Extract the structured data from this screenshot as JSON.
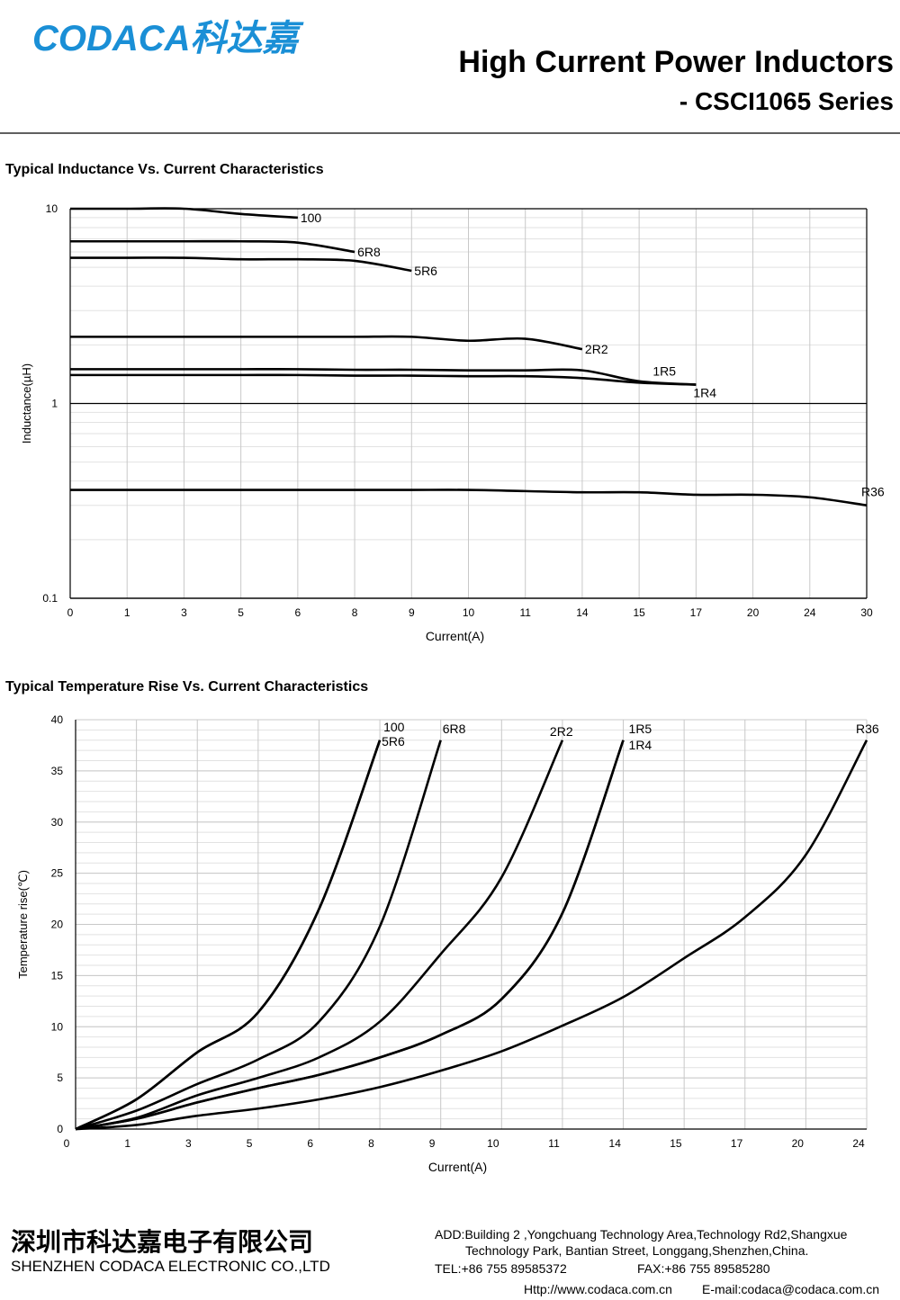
{
  "header": {
    "logo": "CODACA科达嘉",
    "title": "High Current Power Inductors",
    "subtitle": "- CSCI1065 Series"
  },
  "chart_data": [
    {
      "type": "line",
      "title": "Typical Inductance Vs. Current Characteristics",
      "y_label": "Inductance(µH)",
      "x_label": "Current(A)",
      "log_scale": true,
      "grid": true,
      "categories": [
        "0",
        "1",
        "3",
        "5",
        "6",
        "8",
        "9",
        "10",
        "11",
        "14",
        "15",
        "17",
        "20",
        "24",
        "30"
      ],
      "ylim": [
        0.1,
        10
      ],
      "yticks": [
        0.1,
        1,
        10
      ],
      "yminorticks": [
        0.2,
        0.3,
        0.4,
        0.5,
        0.6,
        0.7,
        0.8,
        0.9,
        2,
        3,
        4,
        5,
        6,
        7,
        8,
        9
      ],
      "series": [
        {
          "name": "100",
          "color": "#000000",
          "values": [
            10,
            10,
            10,
            9.4,
            9.0,
            null,
            null,
            null,
            null,
            null,
            null,
            null,
            null,
            null,
            null
          ]
        },
        {
          "name": "6R8",
          "color": "#000000",
          "values": [
            6.8,
            6.8,
            6.8,
            6.8,
            6.7,
            6.0,
            null,
            null,
            null,
            null,
            null,
            null,
            null,
            null,
            null
          ]
        },
        {
          "name": "5R6",
          "color": "#000000",
          "values": [
            5.6,
            5.6,
            5.6,
            5.5,
            5.5,
            5.4,
            4.8,
            null,
            null,
            null,
            null,
            null,
            null,
            null,
            null
          ]
        },
        {
          "name": "2R2",
          "color": "#000000",
          "values": [
            2.2,
            2.2,
            2.2,
            2.2,
            2.2,
            2.2,
            2.2,
            2.1,
            2.15,
            1.9,
            null,
            null,
            null,
            null,
            null
          ]
        },
        {
          "name": "1R5",
          "color": "#000000",
          "values": [
            1.5,
            1.5,
            1.5,
            1.5,
            1.5,
            1.49,
            1.49,
            1.48,
            1.48,
            1.48,
            1.3,
            1.25,
            null,
            null,
            null
          ]
        },
        {
          "name": "1R4",
          "color": "#000000",
          "values": [
            1.4,
            1.4,
            1.4,
            1.4,
            1.4,
            1.39,
            1.39,
            1.38,
            1.38,
            1.35,
            1.28,
            1.25,
            null,
            null,
            null
          ]
        },
        {
          "name": "R36",
          "color": "#000000",
          "values": [
            0.36,
            0.36,
            0.36,
            0.36,
            0.36,
            0.36,
            0.36,
            0.36,
            0.355,
            0.35,
            0.35,
            0.34,
            0.34,
            0.33,
            0.3
          ]
        }
      ]
    },
    {
      "type": "line",
      "title": "Typical Temperature Rise Vs. Current Characteristics",
      "y_label": "Temperature rise(℃)",
      "x_label": "Current(A)",
      "log_scale": false,
      "grid": true,
      "categories": [
        "0",
        "1",
        "3",
        "5",
        "6",
        "8",
        "9",
        "10",
        "11",
        "14",
        "15",
        "17",
        "20",
        "24"
      ],
      "ylim": [
        0,
        40
      ],
      "yticks": [
        0,
        5,
        10,
        15,
        20,
        25,
        30,
        35,
        40
      ],
      "yminorstep": 1,
      "series": [
        {
          "name": "100",
          "color": "#000000",
          "values": [
            0,
            2.9,
            7.5,
            11.4,
            21.5,
            38,
            null,
            null,
            null,
            null,
            null,
            null,
            null,
            null
          ]
        },
        {
          "name": "5R6",
          "color": "#000000",
          "values": [
            0,
            2.9,
            7.5,
            11.4,
            21.5,
            38,
            null,
            null,
            null,
            null,
            null,
            null,
            null,
            null
          ]
        },
        {
          "name": "6R8",
          "color": "#000000",
          "values": [
            0,
            1.8,
            4.4,
            6.8,
            10.5,
            19.8,
            38,
            null,
            null,
            null,
            null,
            null,
            null,
            null
          ]
        },
        {
          "name": "2R2",
          "color": "#000000",
          "values": [
            0,
            1.1,
            3.3,
            5.0,
            7.0,
            10.5,
            17.1,
            24.6,
            38,
            null,
            null,
            null,
            null,
            null
          ]
        },
        {
          "name": "1R5",
          "color": "#000000",
          "values": [
            0,
            1.0,
            2.6,
            4.0,
            5.3,
            7.0,
            9.2,
            12.7,
            21.1,
            38,
            null,
            null,
            null,
            null
          ]
        },
        {
          "name": "1R4",
          "color": "#000000",
          "values": [
            0,
            1.0,
            2.6,
            4.0,
            5.3,
            7.0,
            9.2,
            12.7,
            21.1,
            38,
            null,
            null,
            null,
            null
          ]
        },
        {
          "name": "R36",
          "color": "#000000",
          "values": [
            0,
            0.4,
            1.3,
            2.0,
            2.9,
            4.1,
            5.7,
            7.6,
            10.1,
            12.9,
            16.7,
            20.7,
            26.8,
            38
          ]
        }
      ]
    }
  ],
  "footer": {
    "company_cn": "深圳市科达嘉电子有限公司",
    "company_en": "SHENZHEN CODACA ELECTRONIC CO.,LTD",
    "address_1": "ADD:Building 2 ,Yongchuang Technology Area,Technology Rd2,Shangxue",
    "address_2": "Technology Park, Bantian Street, Longgang,Shenzhen,China.",
    "tel": "TEL:+86 755 89585372",
    "fax": "FAX:+86 755 89585280",
    "web": "Http://www.codaca.com.cn",
    "email": "E-mail:codaca@codaca.com.cn"
  }
}
